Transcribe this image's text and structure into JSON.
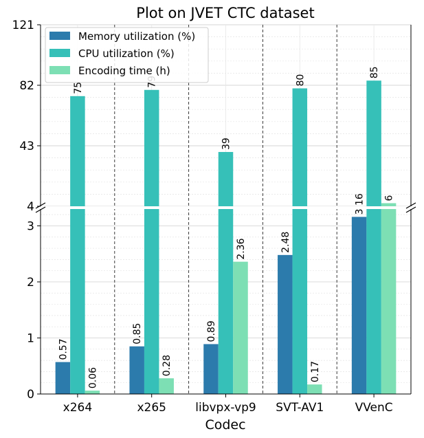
{
  "chart_data": {
    "type": "bar",
    "title": "Plot on JVET CTC dataset",
    "xlabel": "Codec",
    "ylabel": "",
    "categories": [
      "x264",
      "x265",
      "libvpx-vp9",
      "SVT-AV1",
      "VVenC"
    ],
    "series": [
      {
        "name": "Memory utilization (%)",
        "color": "#2c7bac",
        "values": [
          0.57,
          0.85,
          0.89,
          2.48,
          3.16
        ]
      },
      {
        "name": "CPU utilization (%)",
        "color": "#36c0b8",
        "values": [
          75,
          79,
          39,
          80,
          85
        ]
      },
      {
        "name": "Encoding time (h)",
        "color": "#7ddfb4",
        "values": [
          0.06,
          0.28,
          2.36,
          0.17,
          6
        ]
      }
    ],
    "y_axis_broken": true,
    "ylim_lower": [
      0,
      3.3
    ],
    "ylim_upper": [
      4,
      121
    ],
    "yticks_lower": [
      "0",
      "1",
      "2",
      "3"
    ],
    "yticks_upper": [
      "4",
      "43",
      "82",
      "121"
    ],
    "grid": true,
    "legend_position": "top-left"
  }
}
